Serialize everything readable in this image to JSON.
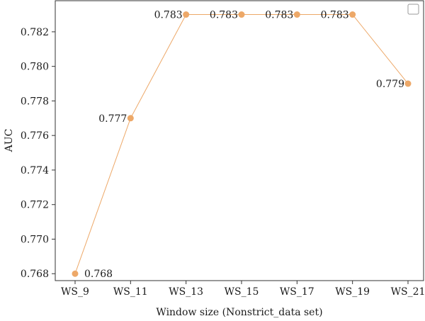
{
  "chart_data": {
    "type": "line",
    "title": "",
    "xlabel": "Window size (Nonstrict_data set)",
    "ylabel": "AUC",
    "categories": [
      "WS_9",
      "WS_11",
      "WS_13",
      "WS_15",
      "WS_17",
      "WS_19",
      "WS_21"
    ],
    "series": [
      {
        "values": [
          0.768,
          0.777,
          0.783,
          0.783,
          0.783,
          0.783,
          0.779
        ],
        "labels": [
          "0.768",
          "0.777",
          "0.783",
          "0.783",
          "0.783",
          "0.783",
          "0.779"
        ],
        "color": "#EDA868"
      }
    ],
    "ylim": [
      0.7676,
      0.7838
    ],
    "yticks": [
      0.768,
      0.77,
      0.772,
      0.774,
      0.776,
      0.778,
      0.78,
      0.782
    ],
    "ytick_labels": [
      "0.768",
      "0.770",
      "0.772",
      "0.774",
      "0.776",
      "0.778",
      "0.780",
      "0.782"
    ],
    "grid": false,
    "legend": "top-right"
  }
}
